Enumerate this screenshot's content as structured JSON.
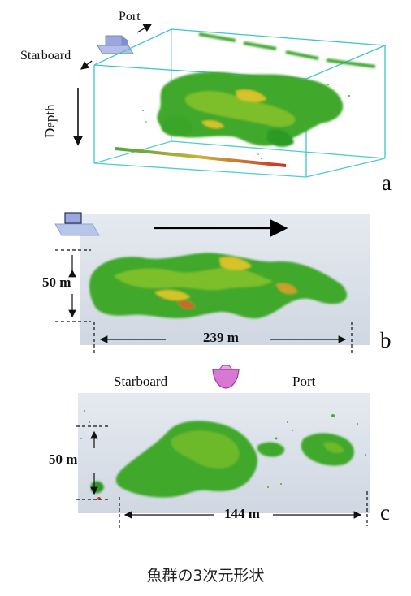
{
  "panel_a": {
    "letter": "a",
    "port_label": "Port",
    "starboard_label": "Starboard",
    "depth_label": "Depth"
  },
  "panel_b": {
    "letter": "b",
    "height_label": "50 m",
    "width_label": "239 m"
  },
  "panel_c": {
    "letter": "c",
    "starboard_label": "Starboard",
    "port_label": "Port",
    "height_label": "50 m",
    "width_label": "144 m"
  },
  "caption": "魚群の3次元形状",
  "colors": {
    "box_edge": "#3cc6c8",
    "school_green": "#3aa52a",
    "school_highlight": "#d6c32b",
    "seabed_red": "#c8322a",
    "background_panel": "#d6dde6",
    "ship_icon": "#9aa8dd",
    "hull_icon": "#d678d4"
  }
}
